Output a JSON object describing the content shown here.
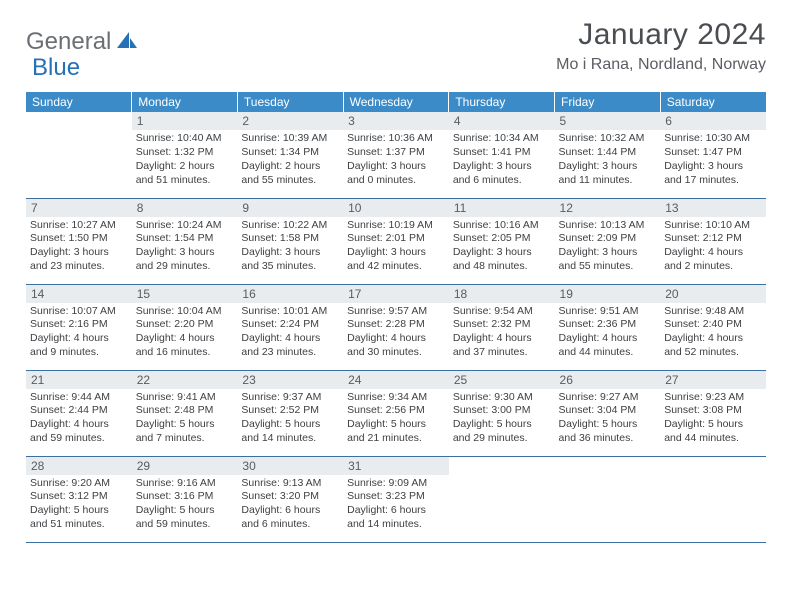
{
  "logo": {
    "part1": "General",
    "part2": "Blue"
  },
  "title": "January 2024",
  "location": "Mo i Rana, Nordland, Norway",
  "colors": {
    "header_bg": "#3b8bc8",
    "header_text": "#ffffff",
    "daynum_bg": "#e9ecef",
    "border": "#3b6fa0",
    "logo_gray": "#6b6e72",
    "logo_blue": "#2670b6"
  },
  "weekdays": [
    "Sunday",
    "Monday",
    "Tuesday",
    "Wednesday",
    "Thursday",
    "Friday",
    "Saturday"
  ],
  "weeks": [
    [
      {
        "n": "",
        "sr": "",
        "ss": "",
        "dl": ""
      },
      {
        "n": "1",
        "sr": "Sunrise: 10:40 AM",
        "ss": "Sunset: 1:32 PM",
        "dl": "Daylight: 2 hours and 51 minutes."
      },
      {
        "n": "2",
        "sr": "Sunrise: 10:39 AM",
        "ss": "Sunset: 1:34 PM",
        "dl": "Daylight: 2 hours and 55 minutes."
      },
      {
        "n": "3",
        "sr": "Sunrise: 10:36 AM",
        "ss": "Sunset: 1:37 PM",
        "dl": "Daylight: 3 hours and 0 minutes."
      },
      {
        "n": "4",
        "sr": "Sunrise: 10:34 AM",
        "ss": "Sunset: 1:41 PM",
        "dl": "Daylight: 3 hours and 6 minutes."
      },
      {
        "n": "5",
        "sr": "Sunrise: 10:32 AM",
        "ss": "Sunset: 1:44 PM",
        "dl": "Daylight: 3 hours and 11 minutes."
      },
      {
        "n": "6",
        "sr": "Sunrise: 10:30 AM",
        "ss": "Sunset: 1:47 PM",
        "dl": "Daylight: 3 hours and 17 minutes."
      }
    ],
    [
      {
        "n": "7",
        "sr": "Sunrise: 10:27 AM",
        "ss": "Sunset: 1:50 PM",
        "dl": "Daylight: 3 hours and 23 minutes."
      },
      {
        "n": "8",
        "sr": "Sunrise: 10:24 AM",
        "ss": "Sunset: 1:54 PM",
        "dl": "Daylight: 3 hours and 29 minutes."
      },
      {
        "n": "9",
        "sr": "Sunrise: 10:22 AM",
        "ss": "Sunset: 1:58 PM",
        "dl": "Daylight: 3 hours and 35 minutes."
      },
      {
        "n": "10",
        "sr": "Sunrise: 10:19 AM",
        "ss": "Sunset: 2:01 PM",
        "dl": "Daylight: 3 hours and 42 minutes."
      },
      {
        "n": "11",
        "sr": "Sunrise: 10:16 AM",
        "ss": "Sunset: 2:05 PM",
        "dl": "Daylight: 3 hours and 48 minutes."
      },
      {
        "n": "12",
        "sr": "Sunrise: 10:13 AM",
        "ss": "Sunset: 2:09 PM",
        "dl": "Daylight: 3 hours and 55 minutes."
      },
      {
        "n": "13",
        "sr": "Sunrise: 10:10 AM",
        "ss": "Sunset: 2:12 PM",
        "dl": "Daylight: 4 hours and 2 minutes."
      }
    ],
    [
      {
        "n": "14",
        "sr": "Sunrise: 10:07 AM",
        "ss": "Sunset: 2:16 PM",
        "dl": "Daylight: 4 hours and 9 minutes."
      },
      {
        "n": "15",
        "sr": "Sunrise: 10:04 AM",
        "ss": "Sunset: 2:20 PM",
        "dl": "Daylight: 4 hours and 16 minutes."
      },
      {
        "n": "16",
        "sr": "Sunrise: 10:01 AM",
        "ss": "Sunset: 2:24 PM",
        "dl": "Daylight: 4 hours and 23 minutes."
      },
      {
        "n": "17",
        "sr": "Sunrise: 9:57 AM",
        "ss": "Sunset: 2:28 PM",
        "dl": "Daylight: 4 hours and 30 minutes."
      },
      {
        "n": "18",
        "sr": "Sunrise: 9:54 AM",
        "ss": "Sunset: 2:32 PM",
        "dl": "Daylight: 4 hours and 37 minutes."
      },
      {
        "n": "19",
        "sr": "Sunrise: 9:51 AM",
        "ss": "Sunset: 2:36 PM",
        "dl": "Daylight: 4 hours and 44 minutes."
      },
      {
        "n": "20",
        "sr": "Sunrise: 9:48 AM",
        "ss": "Sunset: 2:40 PM",
        "dl": "Daylight: 4 hours and 52 minutes."
      }
    ],
    [
      {
        "n": "21",
        "sr": "Sunrise: 9:44 AM",
        "ss": "Sunset: 2:44 PM",
        "dl": "Daylight: 4 hours and 59 minutes."
      },
      {
        "n": "22",
        "sr": "Sunrise: 9:41 AM",
        "ss": "Sunset: 2:48 PM",
        "dl": "Daylight: 5 hours and 7 minutes."
      },
      {
        "n": "23",
        "sr": "Sunrise: 9:37 AM",
        "ss": "Sunset: 2:52 PM",
        "dl": "Daylight: 5 hours and 14 minutes."
      },
      {
        "n": "24",
        "sr": "Sunrise: 9:34 AM",
        "ss": "Sunset: 2:56 PM",
        "dl": "Daylight: 5 hours and 21 minutes."
      },
      {
        "n": "25",
        "sr": "Sunrise: 9:30 AM",
        "ss": "Sunset: 3:00 PM",
        "dl": "Daylight: 5 hours and 29 minutes."
      },
      {
        "n": "26",
        "sr": "Sunrise: 9:27 AM",
        "ss": "Sunset: 3:04 PM",
        "dl": "Daylight: 5 hours and 36 minutes."
      },
      {
        "n": "27",
        "sr": "Sunrise: 9:23 AM",
        "ss": "Sunset: 3:08 PM",
        "dl": "Daylight: 5 hours and 44 minutes."
      }
    ],
    [
      {
        "n": "28",
        "sr": "Sunrise: 9:20 AM",
        "ss": "Sunset: 3:12 PM",
        "dl": "Daylight: 5 hours and 51 minutes."
      },
      {
        "n": "29",
        "sr": "Sunrise: 9:16 AM",
        "ss": "Sunset: 3:16 PM",
        "dl": "Daylight: 5 hours and 59 minutes."
      },
      {
        "n": "30",
        "sr": "Sunrise: 9:13 AM",
        "ss": "Sunset: 3:20 PM",
        "dl": "Daylight: 6 hours and 6 minutes."
      },
      {
        "n": "31",
        "sr": "Sunrise: 9:09 AM",
        "ss": "Sunset: 3:23 PM",
        "dl": "Daylight: 6 hours and 14 minutes."
      },
      {
        "n": "",
        "sr": "",
        "ss": "",
        "dl": ""
      },
      {
        "n": "",
        "sr": "",
        "ss": "",
        "dl": ""
      },
      {
        "n": "",
        "sr": "",
        "ss": "",
        "dl": ""
      }
    ]
  ]
}
